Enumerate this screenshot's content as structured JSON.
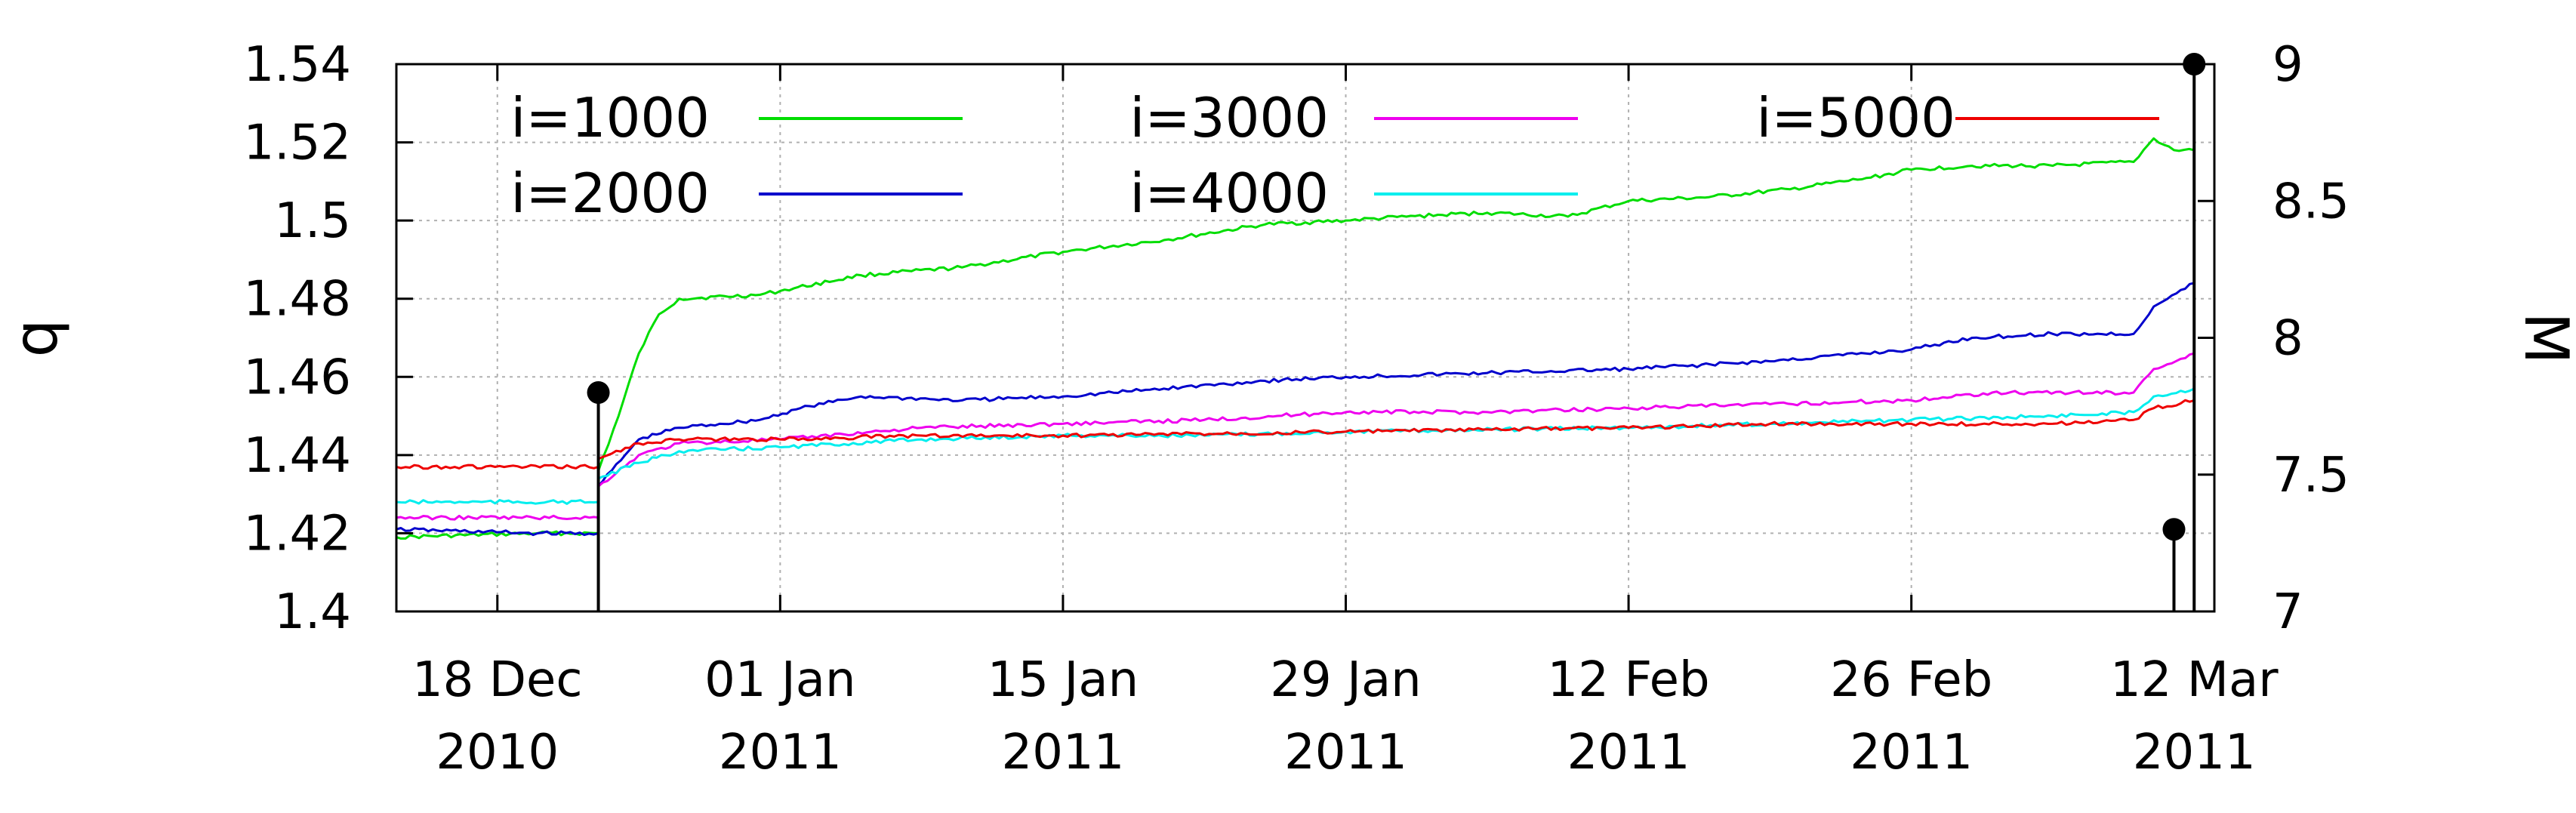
{
  "chart_data": {
    "type": "line",
    "xlabel": "",
    "ylabel": "q",
    "y2label": "M",
    "xlim": [
      "2010-12-13",
      "2011-03-13"
    ],
    "ylim": [
      1.4,
      1.54
    ],
    "y2lim": [
      7,
      9
    ],
    "grid": true,
    "legend_position": "top",
    "x_ticks": [
      {
        "date": "2010-12-18",
        "line1": "18 Dec",
        "line2": "2010"
      },
      {
        "date": "2011-01-01",
        "line1": "01 Jan",
        "line2": "2011"
      },
      {
        "date": "2011-01-15",
        "line1": "15 Jan",
        "line2": "2011"
      },
      {
        "date": "2011-01-29",
        "line1": "29 Jan",
        "line2": "2011"
      },
      {
        "date": "2011-02-12",
        "line1": "12 Feb",
        "line2": "2011"
      },
      {
        "date": "2011-02-26",
        "line1": "26 Feb",
        "line2": "2011"
      },
      {
        "date": "2011-03-12",
        "line1": "12 Mar",
        "line2": "2011"
      }
    ],
    "y_ticks": [
      "1.4",
      "1.42",
      "1.44",
      "1.46",
      "1.48",
      "1.5",
      "1.52",
      "1.54"
    ],
    "y2_ticks": [
      "7",
      "7.5",
      "8",
      "8.5",
      "9"
    ],
    "series": [
      {
        "name": "i=1000",
        "color": "#00dd00",
        "points": [
          [
            "2010-12-13",
            1.419
          ],
          [
            "2010-12-20",
            1.42
          ],
          [
            "2010-12-23",
            1.42
          ],
          [
            "2010-12-23",
            1.436
          ],
          [
            "2010-12-24",
            1.45
          ],
          [
            "2010-12-25",
            1.466
          ],
          [
            "2010-12-26",
            1.476
          ],
          [
            "2010-12-27",
            1.48
          ],
          [
            "2010-12-31",
            1.481
          ],
          [
            "2011-01-01",
            1.482
          ],
          [
            "2011-01-05",
            1.486
          ],
          [
            "2011-01-10",
            1.488
          ],
          [
            "2011-01-15",
            1.492
          ],
          [
            "2011-01-20",
            1.495
          ],
          [
            "2011-01-25",
            1.499
          ],
          [
            "2011-01-29",
            1.5
          ],
          [
            "2011-02-01",
            1.501
          ],
          [
            "2011-02-05",
            1.502
          ],
          [
            "2011-02-09",
            1.501
          ],
          [
            "2011-02-12",
            1.505
          ],
          [
            "2011-02-16",
            1.506
          ],
          [
            "2011-02-20",
            1.508
          ],
          [
            "2011-02-24",
            1.511
          ],
          [
            "2011-02-26",
            1.513
          ],
          [
            "2011-03-01",
            1.514
          ],
          [
            "2011-03-05",
            1.514
          ],
          [
            "2011-03-09",
            1.515
          ],
          [
            "2011-03-10",
            1.521
          ],
          [
            "2011-03-11",
            1.518
          ],
          [
            "2011-03-12",
            1.518
          ]
        ]
      },
      {
        "name": "i=2000",
        "color": "#0000cc",
        "points": [
          [
            "2010-12-13",
            1.421
          ],
          [
            "2010-12-20",
            1.42
          ],
          [
            "2010-12-23",
            1.42
          ],
          [
            "2010-12-23",
            1.432
          ],
          [
            "2010-12-25",
            1.444
          ],
          [
            "2010-12-27",
            1.447
          ],
          [
            "2010-12-31",
            1.449
          ],
          [
            "2011-01-02",
            1.452
          ],
          [
            "2011-01-05",
            1.455
          ],
          [
            "2011-01-10",
            1.454
          ],
          [
            "2011-01-15",
            1.455
          ],
          [
            "2011-01-20",
            1.457
          ],
          [
            "2011-01-25",
            1.459
          ],
          [
            "2011-01-29",
            1.46
          ],
          [
            "2011-02-05",
            1.461
          ],
          [
            "2011-02-12",
            1.462
          ],
          [
            "2011-02-19",
            1.464
          ],
          [
            "2011-02-26",
            1.467
          ],
          [
            "2011-03-01",
            1.47
          ],
          [
            "2011-03-05",
            1.471
          ],
          [
            "2011-03-09",
            1.471
          ],
          [
            "2011-03-10",
            1.478
          ],
          [
            "2011-03-12",
            1.484
          ]
        ]
      },
      {
        "name": "i=3000",
        "color": "#ee00ee",
        "points": [
          [
            "2010-12-13",
            1.424
          ],
          [
            "2010-12-23",
            1.424
          ],
          [
            "2010-12-23",
            1.432
          ],
          [
            "2010-12-25",
            1.44
          ],
          [
            "2010-12-27",
            1.443
          ],
          [
            "2011-01-01",
            1.444
          ],
          [
            "2011-01-08",
            1.447
          ],
          [
            "2011-01-15",
            1.448
          ],
          [
            "2011-01-22",
            1.449
          ],
          [
            "2011-01-29",
            1.451
          ],
          [
            "2011-02-05",
            1.451
          ],
          [
            "2011-02-12",
            1.452
          ],
          [
            "2011-02-19",
            1.453
          ],
          [
            "2011-02-26",
            1.454
          ],
          [
            "2011-03-02",
            1.456
          ],
          [
            "2011-03-09",
            1.456
          ],
          [
            "2011-03-10",
            1.462
          ],
          [
            "2011-03-12",
            1.466
          ]
        ]
      },
      {
        "name": "i=4000",
        "color": "#00eeee",
        "points": [
          [
            "2010-12-13",
            1.428
          ],
          [
            "2010-12-23",
            1.428
          ],
          [
            "2010-12-23",
            1.434
          ],
          [
            "2010-12-25",
            1.438
          ],
          [
            "2010-12-27",
            1.441
          ],
          [
            "2011-01-01",
            1.442
          ],
          [
            "2011-01-08",
            1.444
          ],
          [
            "2011-01-15",
            1.445
          ],
          [
            "2011-01-22",
            1.445
          ],
          [
            "2011-01-29",
            1.446
          ],
          [
            "2011-02-12",
            1.447
          ],
          [
            "2011-02-19",
            1.448
          ],
          [
            "2011-02-26",
            1.449
          ],
          [
            "2011-03-05",
            1.45
          ],
          [
            "2011-03-09",
            1.451
          ],
          [
            "2011-03-10",
            1.455
          ],
          [
            "2011-03-12",
            1.457
          ]
        ]
      },
      {
        "name": "i=5000",
        "color": "#ee0000",
        "points": [
          [
            "2010-12-13",
            1.437
          ],
          [
            "2010-12-23",
            1.437
          ],
          [
            "2010-12-23",
            1.439
          ],
          [
            "2010-12-25",
            1.443
          ],
          [
            "2010-12-27",
            1.444
          ],
          [
            "2011-01-01",
            1.444
          ],
          [
            "2011-01-08",
            1.445
          ],
          [
            "2011-01-15",
            1.445
          ],
          [
            "2011-01-29",
            1.446
          ],
          [
            "2011-02-12",
            1.447
          ],
          [
            "2011-02-19",
            1.448
          ],
          [
            "2011-02-26",
            1.448
          ],
          [
            "2011-03-05",
            1.448
          ],
          [
            "2011-03-09",
            1.449
          ],
          [
            "2011-03-10",
            1.452
          ],
          [
            "2011-03-12",
            1.454
          ]
        ]
      }
    ],
    "events": [
      {
        "date": "2010-12-23",
        "M": 7.8
      },
      {
        "date": "2011-03-11",
        "M": 7.3
      },
      {
        "date": "2011-03-12",
        "M": 9.0
      }
    ]
  }
}
